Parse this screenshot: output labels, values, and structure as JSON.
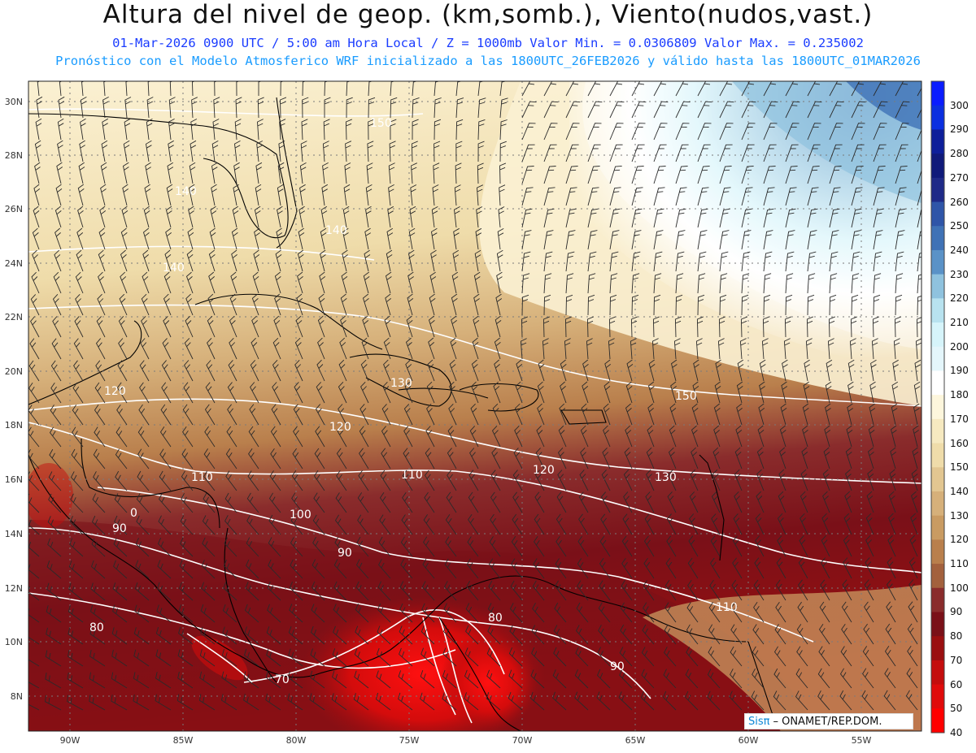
{
  "header": {
    "title": "Altura del nivel de geop. (km,somb.), Viento(nudos,vast.)",
    "subtitle_line1": "01-Mar-2026  0900 UTC / 5:00 am Hora Local / Z = 1000mb  Valor Min. = 0.0306809  Valor Max. = 0.235002",
    "subtitle_line2": "Pronóstico con el Modelo Atmosferico WRF inicializado a las 1800UTC_26FEB2026 y válido hasta las  1800UTC_01MAR2026"
  },
  "map": {
    "lat_labels": [
      "30N",
      "28N",
      "26N",
      "24N",
      "22N",
      "20N",
      "18N",
      "16N",
      "14N",
      "12N",
      "10N",
      "8N"
    ],
    "lon_labels": [
      "90W",
      "85W",
      "80W",
      "75W",
      "70W",
      "65W",
      "60W",
      "55W"
    ],
    "contour_labels": [
      "150",
      "150",
      "140",
      "140",
      "140",
      "130",
      "130",
      "120",
      "120",
      "120",
      "110",
      "110",
      "110",
      "130",
      "100",
      "90",
      "90",
      "90",
      "80",
      "80",
      "70",
      "90",
      "110",
      "0"
    ]
  },
  "colorbar": {
    "labels": [
      "300",
      "290",
      "280",
      "270",
      "260",
      "250",
      "240",
      "230",
      "220",
      "210",
      "200",
      "190",
      "180",
      "170",
      "160",
      "150",
      "140",
      "130",
      "120",
      "110",
      "100",
      "90",
      "80",
      "70",
      "60",
      "50",
      "40"
    ],
    "colors": [
      "#0a1cff",
      "#0b2fe0",
      "#0e1f9a",
      "#101a7a",
      "#1f2a88",
      "#2f55a8",
      "#3f72b6",
      "#5a92c7",
      "#8fc2de",
      "#b8e2ef",
      "#d6f4fa",
      "#e4f6fb",
      "#ffffff",
      "#fdf6dc",
      "#f6e9c0",
      "#efdcaa",
      "#e2c691",
      "#d6b07a",
      "#c99b62",
      "#b97f4c",
      "#a3613d",
      "#8a2c2c",
      "#7a1018",
      "#9a0f10",
      "#c40d0d",
      "#e00b0b",
      "#ff0000"
    ]
  },
  "credit": {
    "brand": "Sisπ",
    "text": "– ONAMET/REP.DOM."
  }
}
